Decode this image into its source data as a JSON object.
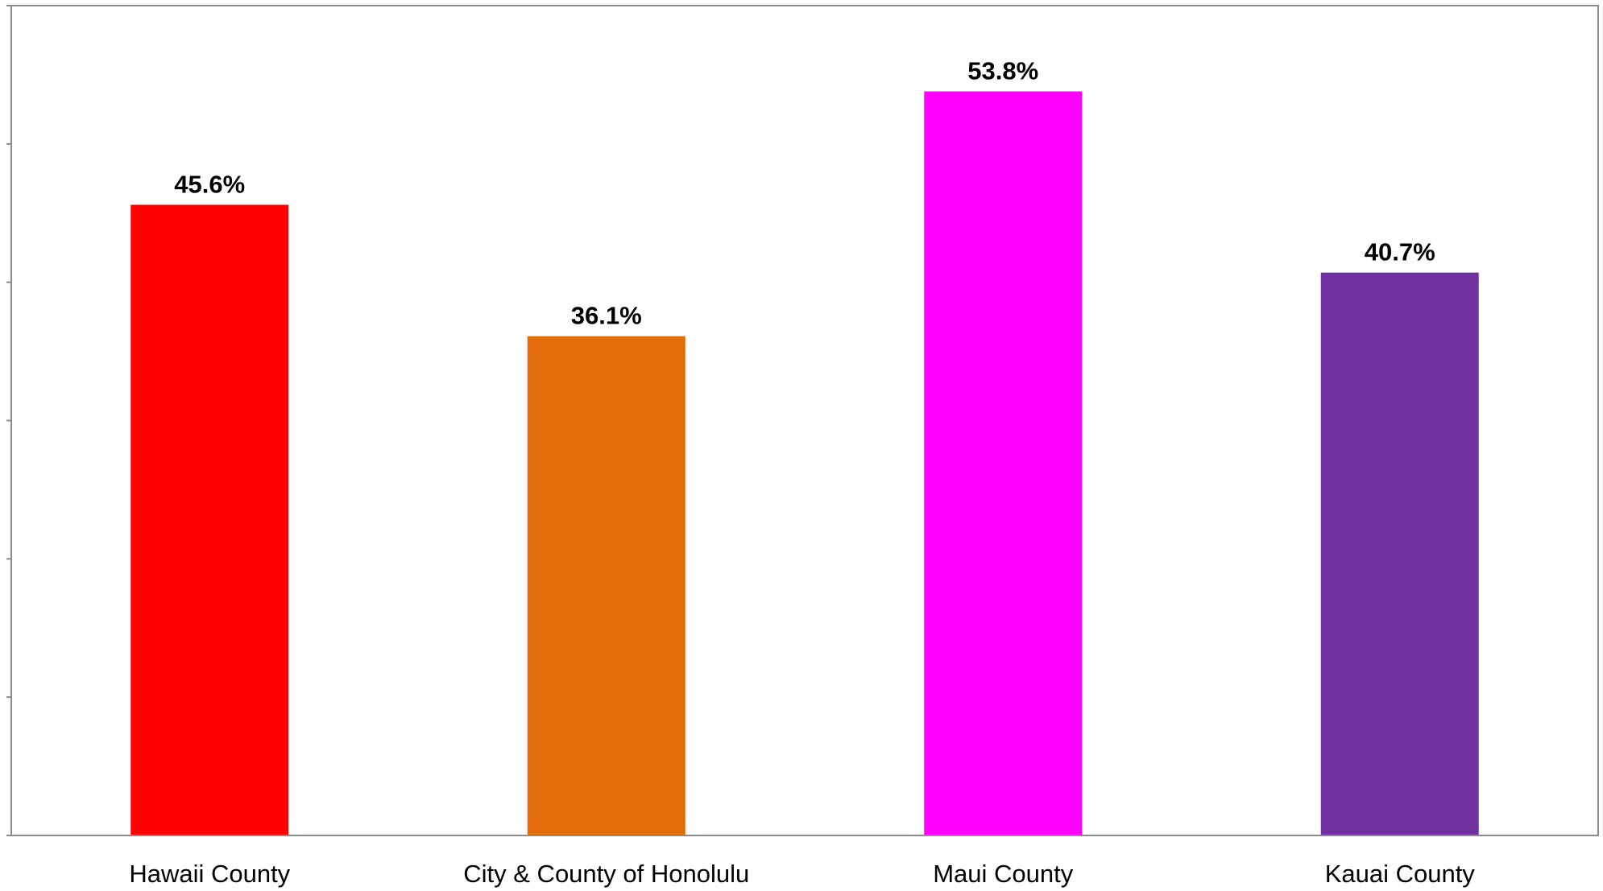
{
  "chart_data": {
    "type": "bar",
    "title": "",
    "xlabel": "",
    "ylabel": "",
    "categories": [
      "Hawaii County",
      "City & County of Honolulu",
      "Maui County",
      "Kauai County"
    ],
    "values": [
      45.6,
      36.1,
      53.8,
      40.7
    ],
    "data_labels": [
      "45.6%",
      "36.1%",
      "53.8%",
      "40.7%"
    ],
    "colors": [
      "#ff0000",
      "#e36c0a",
      "#ff00ff",
      "#7030a0"
    ],
    "ylim": [
      0,
      60
    ],
    "y_tick_step": 10,
    "y_tick_labels_shown": false,
    "grid": false,
    "legend": "none"
  }
}
